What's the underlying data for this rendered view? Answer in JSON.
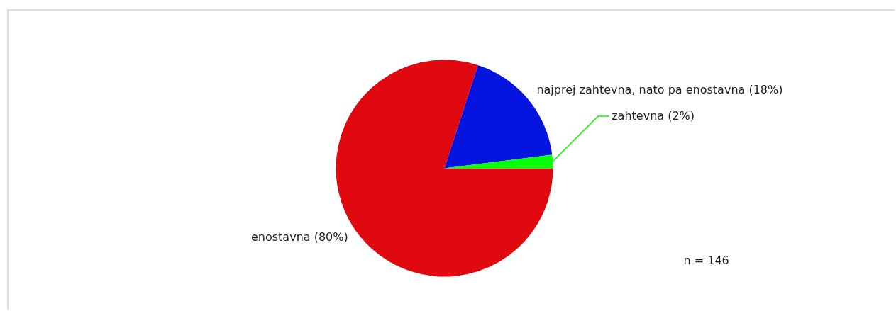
{
  "chart_data": {
    "type": "pie",
    "categories": [
      "enostavna",
      "najprej zahtevna, nato pa enostavna",
      "zahtevna"
    ],
    "values": [
      80,
      18,
      2
    ],
    "value_labels": [
      "(80%)",
      "(18%)",
      "(2%)"
    ],
    "colors": [
      "#e0090f",
      "#0614e0",
      "#05ff05"
    ],
    "annotations": [
      "n = 146"
    ]
  }
}
